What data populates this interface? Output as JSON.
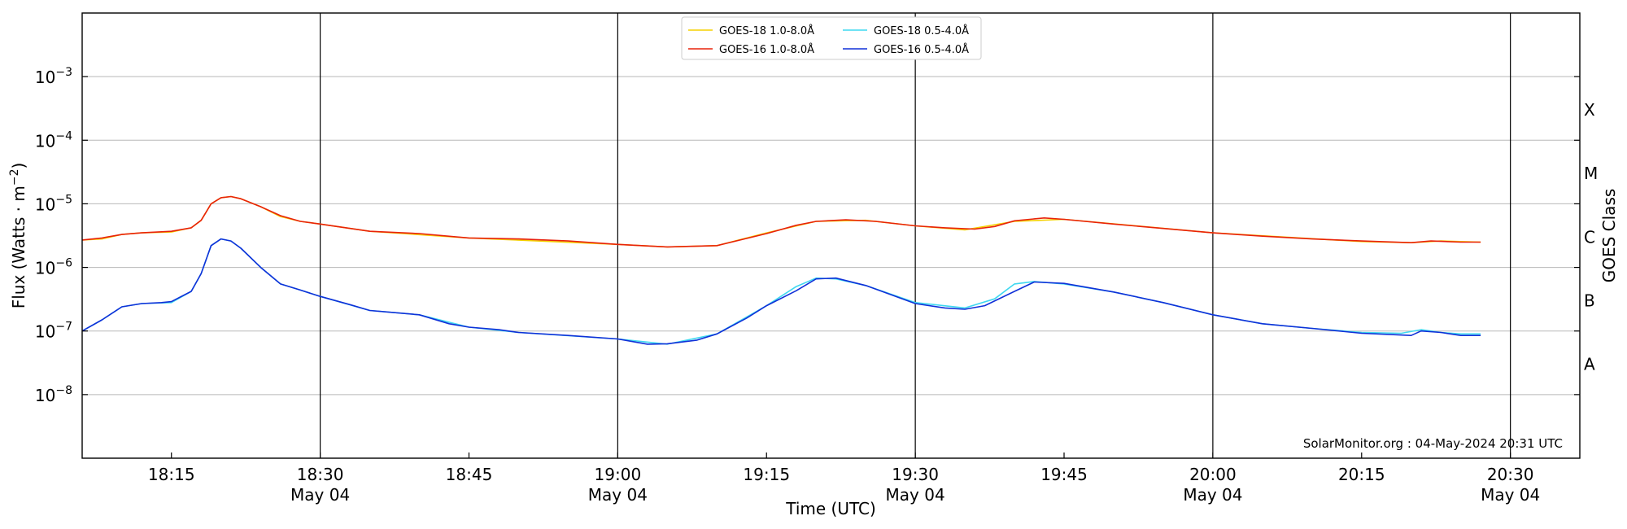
{
  "chart_data": {
    "type": "line",
    "xlabel": "Time (UTC)",
    "ylabel_prefix": "Flux (Watts · m",
    "ylabel_exp": "−2",
    "ylabel_suffix": ")",
    "right_label": "GOES Class",
    "y_scale": "log",
    "ylim": [
      1e-09,
      0.01
    ],
    "xlim": [
      "18:06",
      "20:37"
    ],
    "x_ticks": [
      {
        "t": "18:15",
        "label": "18:15",
        "sub": ""
      },
      {
        "t": "18:30",
        "label": "18:30",
        "sub": "May 04"
      },
      {
        "t": "18:45",
        "label": "18:45",
        "sub": ""
      },
      {
        "t": "19:00",
        "label": "19:00",
        "sub": "May 04"
      },
      {
        "t": "19:15",
        "label": "19:15",
        "sub": ""
      },
      {
        "t": "19:30",
        "label": "19:30",
        "sub": "May 04"
      },
      {
        "t": "19:45",
        "label": "19:45",
        "sub": ""
      },
      {
        "t": "20:00",
        "label": "20:00",
        "sub": "May 04"
      },
      {
        "t": "20:15",
        "label": "20:15",
        "sub": ""
      },
      {
        "t": "20:30",
        "label": "20:30",
        "sub": "May 04"
      }
    ],
    "y_ticks": [
      {
        "exp": -8,
        "base": "10",
        "sup": "−8"
      },
      {
        "exp": -7,
        "base": "10",
        "sup": "−7"
      },
      {
        "exp": -6,
        "base": "10",
        "sup": "−6"
      },
      {
        "exp": -5,
        "base": "10",
        "sup": "−5"
      },
      {
        "exp": -4,
        "base": "10",
        "sup": "−4"
      },
      {
        "exp": -3,
        "base": "10",
        "sup": "−3"
      }
    ],
    "gridlines_y": [
      -8,
      -7,
      -6,
      -5,
      -4,
      -3
    ],
    "vertical_lines": [
      "18:30",
      "19:00",
      "19:30",
      "20:00",
      "20:30"
    ],
    "goes_classes": [
      {
        "label": "A",
        "value": 3e-08
      },
      {
        "label": "B",
        "value": 3e-07
      },
      {
        "label": "C",
        "value": 3e-06
      },
      {
        "label": "M",
        "value": 3e-05
      },
      {
        "label": "X",
        "value": 0.0003
      }
    ],
    "legend_position": "top-center",
    "credit": "SolarMonitor.org : 04-May-2024 20:31 UTC",
    "series": [
      {
        "name": "GOES-18 1.0-8.0Å",
        "color": "#f5d000",
        "x": [
          "18:06",
          "18:08",
          "18:10",
          "18:12",
          "18:15",
          "18:17",
          "18:18",
          "18:19",
          "18:20",
          "18:21",
          "18:22",
          "18:24",
          "18:26",
          "18:28",
          "18:30",
          "18:35",
          "18:45",
          "19:00",
          "19:05",
          "19:10",
          "19:15",
          "19:20",
          "19:25",
          "19:30",
          "19:35",
          "19:40",
          "19:45",
          "20:00",
          "20:15",
          "20:20",
          "20:23",
          "20:27"
        ],
        "y": [
          2.7e-06,
          2.8e-06,
          3.3e-06,
          3.5e-06,
          3.6e-06,
          4.2e-06,
          5.5e-06,
          1e-05,
          1.25e-05,
          1.3e-05,
          1.2e-05,
          9e-06,
          6.3e-06,
          5.3e-06,
          4.8e-06,
          3.7e-06,
          2.9e-06,
          2.3e-06,
          2.1e-06,
          2.2e-06,
          3.5e-06,
          5.3e-06,
          5.5e-06,
          4.5e-06,
          3.9e-06,
          5.3e-06,
          5.7e-06,
          3.5e-06,
          2.55e-06,
          2.45e-06,
          2.6e-06,
          2.5e-06
        ]
      },
      {
        "name": "GOES-16 1.0-8.0Å",
        "color": "#e8220a",
        "x": [
          "18:06",
          "18:08",
          "18:10",
          "18:12",
          "18:15",
          "18:17",
          "18:18",
          "18:19",
          "18:20",
          "18:21",
          "18:22",
          "18:24",
          "18:26",
          "18:28",
          "18:30",
          "18:35",
          "18:40",
          "18:45",
          "18:50",
          "18:55",
          "19:00",
          "19:05",
          "19:10",
          "19:15",
          "19:18",
          "19:20",
          "19:23",
          "19:26",
          "19:30",
          "19:33",
          "19:36",
          "19:38",
          "19:40",
          "19:43",
          "19:45",
          "19:50",
          "19:55",
          "20:00",
          "20:05",
          "20:10",
          "20:15",
          "20:20",
          "20:22",
          "20:25",
          "20:27"
        ],
        "y": [
          2.7e-06,
          2.9e-06,
          3.3e-06,
          3.5e-06,
          3.7e-06,
          4.2e-06,
          5.5e-06,
          1e-05,
          1.25e-05,
          1.3e-05,
          1.2e-05,
          9e-06,
          6.5e-06,
          5.3e-06,
          4.8e-06,
          3.7e-06,
          3.4e-06,
          2.9e-06,
          2.8e-06,
          2.6e-06,
          2.3e-06,
          2.1e-06,
          2.2e-06,
          3.4e-06,
          4.6e-06,
          5.3e-06,
          5.6e-06,
          5.3e-06,
          4.5e-06,
          4.2e-06,
          4e-06,
          4.4e-06,
          5.4e-06,
          6e-06,
          5.7e-06,
          4.8e-06,
          4.1e-06,
          3.5e-06,
          3.1e-06,
          2.8e-06,
          2.6e-06,
          2.45e-06,
          2.6e-06,
          2.5e-06,
          2.5e-06
        ]
      },
      {
        "name": "GOES-18 0.5-4.0Å",
        "color": "#3fd8f0",
        "x": [
          "18:06",
          "18:08",
          "18:10",
          "18:12",
          "18:15",
          "18:17",
          "18:18",
          "18:19",
          "18:20",
          "18:21",
          "18:22",
          "18:24",
          "18:26",
          "18:28",
          "18:30",
          "18:35",
          "18:40",
          "18:45",
          "18:50",
          "19:00",
          "19:05",
          "19:10",
          "19:15",
          "19:18",
          "19:20",
          "19:22",
          "19:25",
          "19:30",
          "19:35",
          "19:38",
          "19:40",
          "19:42",
          "19:45",
          "19:50",
          "19:55",
          "20:00",
          "20:05",
          "20:10",
          "20:15",
          "20:19",
          "20:21",
          "20:23",
          "20:25",
          "20:27"
        ],
        "y": [
          1e-07,
          1.5e-07,
          2.4e-07,
          2.7e-07,
          2.8e-07,
          4.2e-07,
          8e-07,
          2.2e-06,
          2.8e-06,
          2.6e-06,
          2e-06,
          1e-06,
          5.5e-07,
          4.4e-07,
          3.5e-07,
          2.1e-07,
          1.8e-07,
          1.15e-07,
          9.5e-08,
          7.5e-08,
          6.2e-08,
          9e-08,
          2.5e-07,
          5e-07,
          6.8e-07,
          6.6e-07,
          5.2e-07,
          2.8e-07,
          2.3e-07,
          3.2e-07,
          5.5e-07,
          6e-07,
          5.5e-07,
          4.1e-07,
          2.8e-07,
          1.8e-07,
          1.3e-07,
          1.1e-07,
          9.5e-08,
          9.2e-08,
          1.05e-07,
          9.5e-08,
          9e-08,
          9e-08
        ]
      },
      {
        "name": "GOES-16 0.5-4.0Å",
        "color": "#1030d8",
        "x": [
          "18:06",
          "18:08",
          "18:10",
          "18:12",
          "18:14",
          "18:15",
          "18:17",
          "18:18",
          "18:19",
          "18:20",
          "18:21",
          "18:22",
          "18:24",
          "18:26",
          "18:28",
          "18:30",
          "18:33",
          "18:35",
          "18:40",
          "18:43",
          "18:45",
          "18:48",
          "18:50",
          "18:55",
          "19:00",
          "19:03",
          "19:05",
          "19:08",
          "19:10",
          "19:13",
          "19:15",
          "19:18",
          "19:20",
          "19:22",
          "19:25",
          "19:30",
          "19:33",
          "19:35",
          "19:37",
          "19:40",
          "19:42",
          "19:45",
          "19:50",
          "19:55",
          "20:00",
          "20:05",
          "20:10",
          "20:15",
          "20:18",
          "20:20",
          "20:21",
          "20:23",
          "20:25",
          "20:27"
        ],
        "y": [
          1e-07,
          1.5e-07,
          2.4e-07,
          2.7e-07,
          2.8e-07,
          2.9e-07,
          4.2e-07,
          8e-07,
          2.2e-06,
          2.8e-06,
          2.6e-06,
          2e-06,
          1e-06,
          5.5e-07,
          4.4e-07,
          3.5e-07,
          2.6e-07,
          2.1e-07,
          1.8e-07,
          1.3e-07,
          1.15e-07,
          1.05e-07,
          9.5e-08,
          8.5e-08,
          7.5e-08,
          6.2e-08,
          6.3e-08,
          7.2e-08,
          9e-08,
          1.6e-07,
          2.5e-07,
          4.3e-07,
          6.6e-07,
          6.8e-07,
          5.2e-07,
          2.7e-07,
          2.3e-07,
          2.2e-07,
          2.5e-07,
          4.2e-07,
          5.9e-07,
          5.6e-07,
          4.1e-07,
          2.8e-07,
          1.8e-07,
          1.3e-07,
          1.1e-07,
          9.2e-08,
          8.8e-08,
          8.5e-08,
          1e-07,
          9.5e-08,
          8.5e-08,
          8.5e-08
        ]
      }
    ]
  }
}
